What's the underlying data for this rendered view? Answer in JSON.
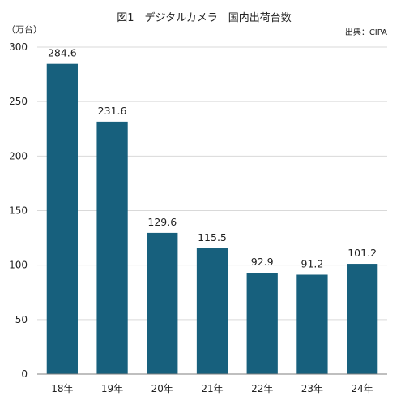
{
  "chart_data": {
    "type": "bar",
    "title": "図1　デジタルカメラ　国内出荷台数",
    "source": "出典：CIPA",
    "unit_label": "（万台）",
    "categories": [
      "18年",
      "19年",
      "20年",
      "21年",
      "22年",
      "23年",
      "24年"
    ],
    "values": [
      284.6,
      231.6,
      129.6,
      115.5,
      92.9,
      91.2,
      101.2
    ],
    "value_labels": [
      "284.6",
      "231.6",
      "129.6",
      "115.5",
      "92.9",
      "91.2",
      "101.2"
    ],
    "ylim": [
      0,
      300
    ],
    "yticks": [
      0,
      50,
      100,
      150,
      200,
      250,
      300
    ],
    "grid": true,
    "legend": "none",
    "bar_color": "#17607d"
  }
}
